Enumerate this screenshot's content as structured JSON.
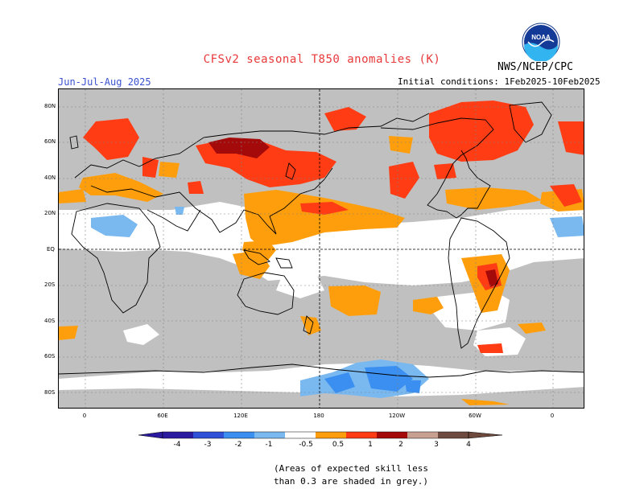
{
  "header": {
    "title": "CFSv2 seasonal T850 anomalies (K)",
    "season": "Jun-Jul-Aug 2025",
    "initial_conditions": "Initial conditions: 1Feb2025-10Feb2025",
    "agency": "NWS/NCEP/CPC",
    "logo_text": "NOAA"
  },
  "map": {
    "lat_labels": [
      "80N",
      "60N",
      "40N",
      "20N",
      "EQ",
      "20S",
      "40S",
      "60S",
      "80S"
    ],
    "lon_labels": [
      "0",
      "60E",
      "120E",
      "180",
      "120W",
      "60W",
      "0"
    ],
    "grey_meaning": "low skill",
    "colors": {
      "grey": "#c0c0c0",
      "orange": "#ff9e0c",
      "red_orange": "#ff3c14",
      "dark_red": "#a50a0a",
      "light_blue": "#7ab8f0",
      "blue": "#3a8ff0"
    }
  },
  "colorbar": {
    "labels": [
      "-4",
      "-3",
      "-2",
      "-1",
      "-0.5",
      "0.5",
      "1",
      "2",
      "3",
      "4"
    ],
    "colors": [
      "#2a1aa0",
      "#3050d8",
      "#3a8ff0",
      "#7ab8f0",
      "#ffffff",
      "#ff9e0c",
      "#ff3c14",
      "#a50a0a",
      "#c8a090",
      "#6e4a3e"
    ]
  },
  "footnote": {
    "line1": "(Areas of expected skill less",
    "line2": "than 0.3 are shaded in grey.)"
  }
}
